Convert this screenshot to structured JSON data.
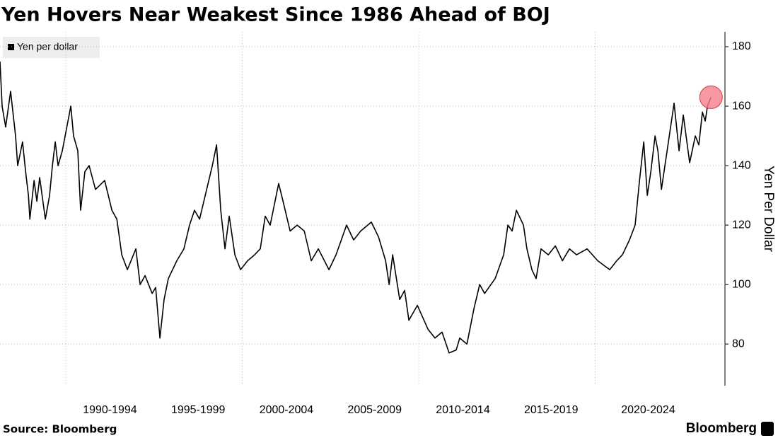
{
  "chart_data": {
    "type": "line",
    "title": "Yen Hovers Near Weakest Since 1986 Ahead of BOJ",
    "y_label": "Yen Per Dollar",
    "source": "Source: Bloomberg",
    "brand": "Bloomberg",
    "xlim": [
      1986.27,
      2027.35
    ],
    "ylim": [
      66,
      185
    ],
    "yticks": [
      80,
      100,
      120,
      140,
      160,
      180
    ],
    "xticks": [
      {
        "value": 1992.5,
        "label": "1990-1994"
      },
      {
        "value": 1997.5,
        "label": "1995-1999"
      },
      {
        "value": 2002.5,
        "label": "2000-2004"
      },
      {
        "value": 2007.5,
        "label": "2005-2009"
      },
      {
        "value": 2012.5,
        "label": "2010-2014"
      },
      {
        "value": 2017.5,
        "label": "2015-2019"
      },
      {
        "value": 2023,
        "label": "2020-2024"
      }
    ],
    "xgrid": [
      1990,
      2000,
      2010,
      2020
    ],
    "grid": true,
    "highlight_color": "#f4808f",
    "series": [
      {
        "name": "Yen per dollar",
        "color": "#000000",
        "x": [
          1986.27,
          1986.39,
          1986.59,
          1986.87,
          1987.15,
          1987.27,
          1987.55,
          1987.72,
          1987.88,
          1987.96,
          1988.2,
          1988.36,
          1988.52,
          1988.84,
          1989.08,
          1989.24,
          1989.4,
          1989.56,
          1989.8,
          1989.96,
          1990.28,
          1990.44,
          1990.68,
          1990.84,
          1991.08,
          1991.32,
          1991.68,
          1992.2,
          1992.61,
          1992.89,
          1993.17,
          1993.49,
          1993.97,
          1994.21,
          1994.49,
          1994.89,
          1995.09,
          1995.33,
          1995.57,
          1995.81,
          1996.29,
          1996.69,
          1997.01,
          1997.29,
          1997.58,
          1997.9,
          1998.3,
          1998.54,
          1998.78,
          1999.02,
          1999.26,
          1999.58,
          1999.9,
          2000.3,
          2000.7,
          2001.02,
          2001.3,
          2001.58,
          2002.06,
          2002.31,
          2002.71,
          2003.11,
          2003.51,
          2003.91,
          2004.31,
          2004.91,
          2005.31,
          2005.91,
          2006.31,
          2006.71,
          2007.31,
          2007.72,
          2008.12,
          2008.32,
          2008.52,
          2008.92,
          2009.2,
          2009.44,
          2009.92,
          2010.52,
          2010.92,
          2011.32,
          2011.72,
          2012.12,
          2012.32,
          2012.73,
          2013.13,
          2013.45,
          2013.73,
          2014.33,
          2014.81,
          2015.05,
          2015.29,
          2015.53,
          2015.93,
          2016.13,
          2016.41,
          2016.65,
          2016.93,
          2017.34,
          2017.74,
          2018.14,
          2018.54,
          2018.94,
          2019.54,
          2020.14,
          2020.82,
          2021.22,
          2021.54,
          2021.94,
          2022.26,
          2022.51,
          2022.75,
          2022.95,
          2023.15,
          2023.39,
          2023.55,
          2023.75,
          2024.07,
          2024.47,
          2024.75,
          2024.99,
          2025.35,
          2025.67,
          2025.87,
          2026.07,
          2026.23,
          2026.36,
          2026.56
        ],
        "values": [
          175,
          160,
          153,
          165,
          150,
          140,
          148,
          138,
          130,
          122,
          135,
          128,
          136,
          122,
          130,
          140,
          148,
          140,
          145,
          150,
          160,
          150,
          145,
          125,
          138,
          140,
          132,
          135,
          125,
          122,
          110,
          105,
          112,
          100,
          103,
          97,
          99,
          82,
          95,
          102,
          108,
          112,
          120,
          125,
          122,
          130,
          140,
          147,
          125,
          112,
          123,
          110,
          105,
          108,
          110,
          112,
          123,
          120,
          134,
          128,
          118,
          120,
          118,
          108,
          112,
          105,
          110,
          120,
          115,
          118,
          121,
          116,
          108,
          100,
          110,
          95,
          98,
          88,
          93,
          85,
          82,
          84,
          77,
          78,
          82,
          80,
          92,
          100,
          97,
          102,
          110,
          120,
          118,
          125,
          120,
          112,
          105,
          102,
          112,
          110,
          113,
          108,
          112,
          110,
          112,
          108,
          105,
          108,
          110,
          115,
          120,
          135,
          148,
          130,
          138,
          150,
          145,
          132,
          145,
          161,
          145,
          157,
          141,
          150,
          147,
          158,
          155,
          160,
          163
        ]
      }
    ]
  }
}
